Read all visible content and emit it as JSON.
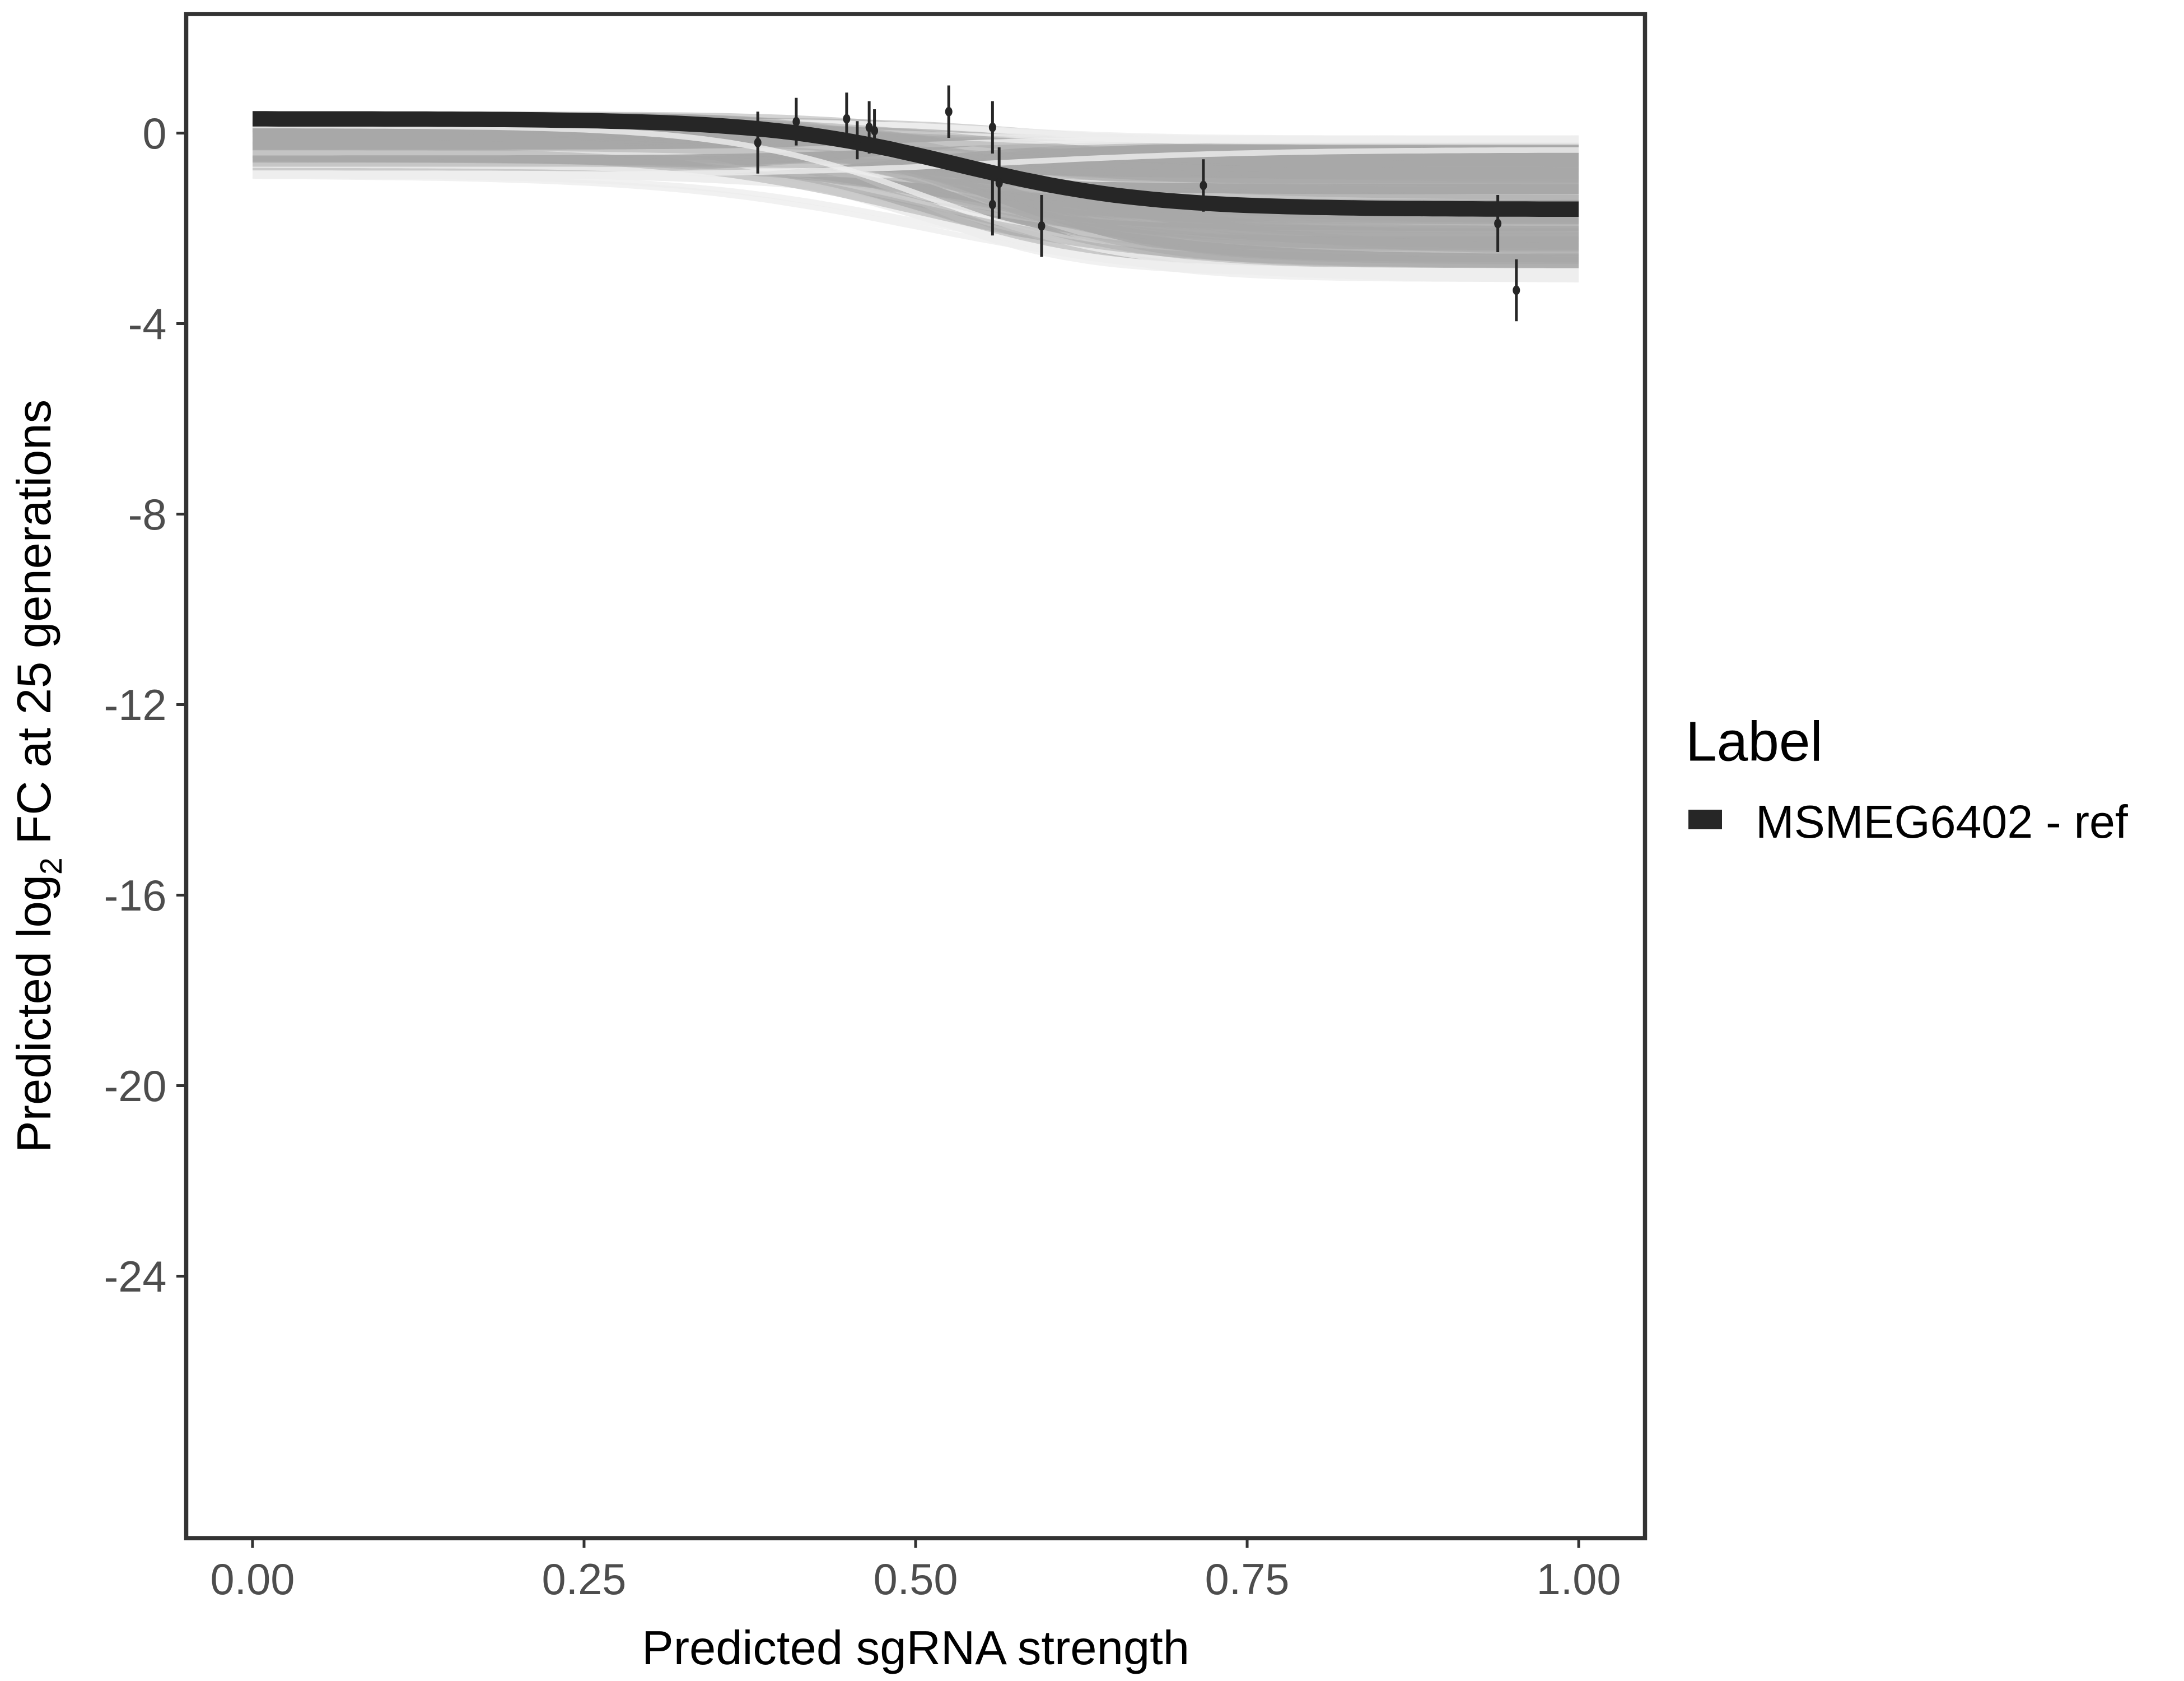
{
  "chart_data": {
    "type": "line",
    "title": "",
    "xlabel": "Predicted sgRNA strength",
    "ylabel_parts": {
      "pre": "Predicted  log",
      "sub": "2",
      "post": " FC at 25 generations"
    },
    "xlim": [
      -0.05,
      1.05
    ],
    "ylim": [
      -29.5,
      2.5
    ],
    "xticks": [
      0,
      0.25,
      0.5,
      0.75,
      1
    ],
    "xtick_labels": [
      "0.00",
      "0.25",
      "0.50",
      "0.75",
      "1.00"
    ],
    "yticks": [
      0,
      -4,
      -8,
      -12,
      -16,
      -20,
      -24
    ],
    "ytick_labels": [
      "0",
      "-4",
      "-8",
      "-12",
      "-16",
      "-20",
      "-24"
    ],
    "grid": false,
    "legend": {
      "title": "Label",
      "placement": "right",
      "entries": [
        "MSMEG6402 - ref"
      ]
    },
    "fit_curve": {
      "upper": 0.3,
      "lower": -1.6,
      "midpoint": 0.53,
      "steepness": 14
    },
    "uncertainty_band": {
      "upper_start": 0.35,
      "upper_end": -0.1,
      "lower_start": -1.0,
      "lower_end": -3.1
    },
    "points": [
      {
        "x": 0.381,
        "y": -0.2,
        "err": 0.65
      },
      {
        "x": 0.41,
        "y": 0.24,
        "err": 0.5
      },
      {
        "x": 0.448,
        "y": 0.3,
        "err": 0.55
      },
      {
        "x": 0.456,
        "y": -0.15,
        "err": 0.4
      },
      {
        "x": 0.465,
        "y": 0.12,
        "err": 0.55
      },
      {
        "x": 0.469,
        "y": 0.05,
        "err": 0.45
      },
      {
        "x": 0.525,
        "y": 0.45,
        "err": 0.55
      },
      {
        "x": 0.558,
        "y": 0.12,
        "err": 0.55
      },
      {
        "x": 0.558,
        "y": -1.5,
        "err": 0.65
      },
      {
        "x": 0.563,
        "y": -1.05,
        "err": 0.75
      },
      {
        "x": 0.595,
        "y": -1.95,
        "err": 0.65
      },
      {
        "x": 0.717,
        "y": -1.1,
        "err": 0.55
      },
      {
        "x": 0.939,
        "y": -1.9,
        "err": 0.6
      },
      {
        "x": 0.953,
        "y": -3.3,
        "err": 0.65
      }
    ],
    "colors": {
      "curve": "#262626",
      "band": "#a8a8a8",
      "band_light": "#eeeeee",
      "points": "#262626"
    }
  }
}
